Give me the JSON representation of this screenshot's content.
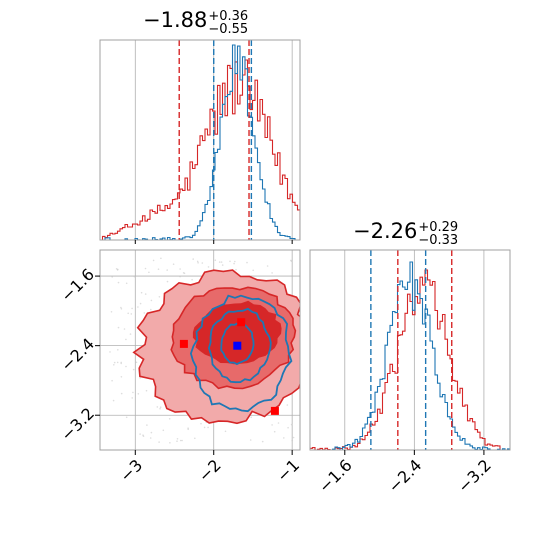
{
  "chart_data": [
    {
      "type": "histogram",
      "panel": "top-left",
      "title": {
        "main": "−1.88",
        "sup": "+0.36",
        "sub": "−0.55"
      },
      "xlim": [
        -3.45,
        -0.9
      ],
      "series": [
        {
          "name": "",
          "color": "#1f77b4",
          "shape": "narrow peaked histogram",
          "peak_x": -1.7,
          "quantiles_x": [
            -2.0,
            -1.52
          ]
        },
        {
          "name": "",
          "color": "#d62728",
          "shape": "broad histogram",
          "peak_x": -1.7,
          "quantiles_x": [
            -2.44,
            -1.55
          ]
        }
      ],
      "grid": true
    },
    {
      "type": "histogram",
      "panel": "bottom-right",
      "title": {
        "main": "−2.26",
        "sup": "+0.29",
        "sub": "−0.33"
      },
      "xlim": [
        -3.6,
        -1.3
      ],
      "x_ticks": [
        "−3.2",
        "−2.4",
        "−1.6"
      ],
      "series": [
        {
          "name": "",
          "color": "#1f77b4",
          "shape": "narrow peaked histogram",
          "peak_x": -2.45,
          "quantiles_x": [
            -2.9,
            -2.27
          ]
        },
        {
          "name": "",
          "color": "#d62728",
          "shape": "broad histogram",
          "peak_x": -2.3,
          "quantiles_x": [
            -2.59,
            -1.97
          ]
        }
      ],
      "grid": true
    },
    {
      "type": "contour",
      "panel": "bottom-left",
      "xlim": [
        -3.45,
        -0.9
      ],
      "ylim": [
        -3.6,
        -1.3
      ],
      "x_ticks": [
        "−3",
        "−2",
        "−1"
      ],
      "y_ticks": [
        "−1.6",
        "−2.4",
        "−3.2"
      ],
      "series": [
        {
          "name": "",
          "color": "#1f77b4",
          "center": [
            -1.7,
            -2.42
          ]
        },
        {
          "name": "",
          "color": "#d62728",
          "center": [
            -1.85,
            -2.3
          ]
        }
      ],
      "markers": [
        {
          "x": -1.65,
          "y": -2.13,
          "color": "#ff0000"
        },
        {
          "x": -2.38,
          "y": -2.38,
          "color": "#ff0000"
        },
        {
          "x": -1.7,
          "y": -2.4,
          "color": "#0000ff"
        },
        {
          "x": -1.22,
          "y": -3.15,
          "color": "#ff0000"
        }
      ],
      "grid": true
    }
  ]
}
